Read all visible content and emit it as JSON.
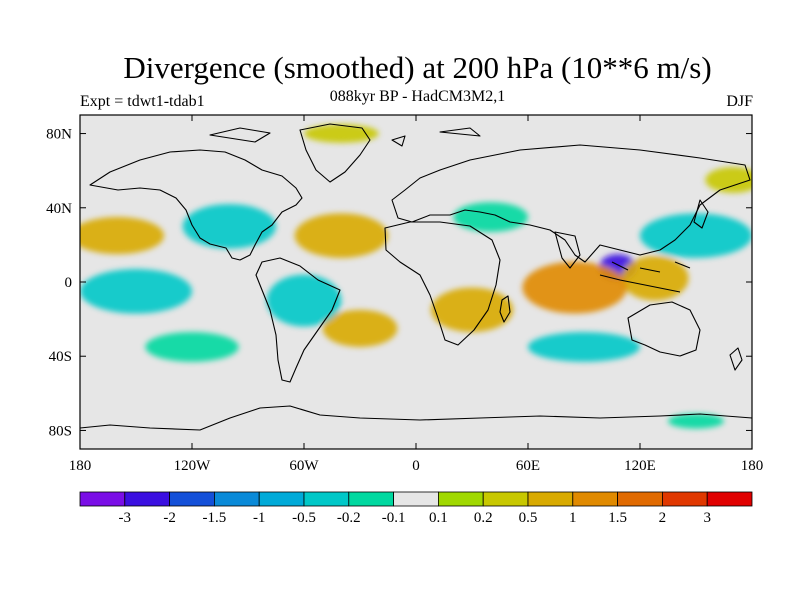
{
  "header": {
    "title": "Divergence (smoothed) at 200 hPa (10**6 m/s)",
    "subtitle": "088kyr BP - HadCM3M2,1",
    "experiment": "Expt = tdwt1-tdab1",
    "season": "DJF"
  },
  "map": {
    "projection": "cylindrical equidistant",
    "lon_range": [
      -180,
      180
    ],
    "lat_range": [
      -90,
      90
    ],
    "background_color": "#e6e6e6",
    "coastline_color": "#000000",
    "x_ticks": [
      {
        "lon": -180,
        "label": "180"
      },
      {
        "lon": -120,
        "label": "120W"
      },
      {
        "lon": -60,
        "label": "60W"
      },
      {
        "lon": 0,
        "label": "0"
      },
      {
        "lon": 60,
        "label": "60E"
      },
      {
        "lon": 120,
        "label": "120E"
      },
      {
        "lon": 180,
        "label": "180"
      }
    ],
    "y_ticks": [
      {
        "lat": 80,
        "label": "80N"
      },
      {
        "lat": 40,
        "label": "40N"
      },
      {
        "lat": 0,
        "label": "0"
      },
      {
        "lat": -40,
        "label": "40S"
      },
      {
        "lat": -80,
        "label": "80S"
      }
    ],
    "regions": [
      {
        "name": "w-pacific-divergence-tropics",
        "lon": 108,
        "lat": 8,
        "rlon": 10,
        "rlat": 7,
        "value": -3
      },
      {
        "name": "indonesia-convergence",
        "lon": 128,
        "lat": 2,
        "rlon": 18,
        "rlat": 12,
        "value": 0.5
      },
      {
        "name": "indian-ocean-south",
        "lon": 85,
        "lat": -3,
        "rlon": 28,
        "rlat": 14,
        "value": 1
      },
      {
        "name": "s-africa-convergence",
        "lon": 30,
        "lat": -15,
        "rlon": 22,
        "rlat": 12,
        "value": 0.5
      },
      {
        "name": "n-pacific-west",
        "lon": 150,
        "lat": 25,
        "rlon": 30,
        "rlat": 12,
        "value": -0.5
      },
      {
        "name": "e-pacific-south",
        "lon": -150,
        "lat": -5,
        "rlon": 30,
        "rlat": 12,
        "value": -0.5
      },
      {
        "name": "n-america",
        "lon": -100,
        "lat": 30,
        "rlon": 25,
        "rlat": 12,
        "value": -0.5
      },
      {
        "name": "e-pacific-north",
        "lon": -160,
        "lat": 25,
        "rlon": 25,
        "rlat": 10,
        "value": 0.5
      },
      {
        "name": "s-atlantic",
        "lon": -30,
        "lat": -25,
        "rlon": 20,
        "rlat": 10,
        "value": 0.5
      },
      {
        "name": "s-america",
        "lon": -60,
        "lat": -10,
        "rlon": 20,
        "rlat": 14,
        "value": -0.5
      },
      {
        "name": "s-pacific-south",
        "lon": -120,
        "lat": -35,
        "rlon": 25,
        "rlat": 8,
        "value": -0.2
      },
      {
        "name": "s-indian-south",
        "lon": 90,
        "lat": -35,
        "rlon": 30,
        "rlat": 8,
        "value": -0.5
      },
      {
        "name": "n-atlantic",
        "lon": -40,
        "lat": 25,
        "rlon": 25,
        "rlat": 12,
        "value": 0.5
      },
      {
        "name": "arctic-patch",
        "lon": -40,
        "lat": 80,
        "rlon": 20,
        "rlat": 5,
        "value": 0.2
      },
      {
        "name": "asia-west",
        "lon": 40,
        "lat": 35,
        "rlon": 20,
        "rlat": 8,
        "value": -0.2
      },
      {
        "name": "n-pacific-far",
        "lon": 170,
        "lat": 55,
        "rlon": 15,
        "rlat": 7,
        "value": 0.2
      },
      {
        "name": "antarctic-patch",
        "lon": 150,
        "lat": -75,
        "rlon": 15,
        "rlat": 4,
        "value": -0.2
      }
    ]
  },
  "colorbar": {
    "levels": [
      "-3",
      "-2",
      "-1.5",
      "-1",
      "-0.5",
      "-0.2",
      "-0.1",
      "0.1",
      "0.2",
      "0.5",
      "1",
      "1.5",
      "2",
      "3"
    ],
    "colors": [
      "#7a0ee6",
      "#3b0fe0",
      "#1450d8",
      "#0a8ad8",
      "#00aad8",
      "#00c8c8",
      "#00d8a0",
      "#e6e6e6",
      "#a0d800",
      "#c8c800",
      "#d8aa00",
      "#e08a00",
      "#e06a00",
      "#e03800",
      "#e00000"
    ]
  }
}
